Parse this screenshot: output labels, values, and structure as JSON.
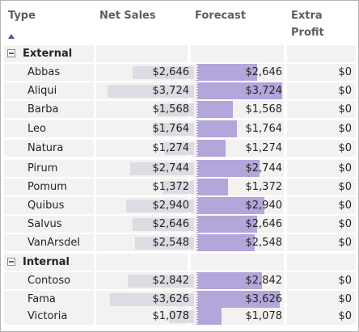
{
  "headers": {
    "type": "Type",
    "net_sales": "Net Sales",
    "forecast": "Forecast",
    "extra_profit_line1": "Extra",
    "extra_profit_line2": "Profit"
  },
  "sort": {
    "column": "Type",
    "direction": "ascending"
  },
  "colors": {
    "sales_bar": "#dcdde3",
    "forecast_bar": "#b3a6db",
    "cell_bg": "#f3f2f1"
  },
  "max_value": 3800,
  "groups": [
    {
      "name": "External",
      "rows": [
        {
          "name": "Abbas",
          "net_sales": "$2,646",
          "forecast": "$2,646",
          "extra_profit": "$0",
          "value": 2646
        },
        {
          "name": "Aliqui",
          "net_sales": "$3,724",
          "forecast": "$3,724",
          "extra_profit": "$0",
          "value": 3724
        },
        {
          "name": "Barba",
          "net_sales": "$1,568",
          "forecast": "$1,568",
          "extra_profit": "$0",
          "value": 1568
        },
        {
          "name": "Leo",
          "net_sales": "$1,764",
          "forecast": "$1,764",
          "extra_profit": "$0",
          "value": 1764
        },
        {
          "name": "Natura",
          "net_sales": "$1,274",
          "forecast": "$1,274",
          "extra_profit": "$0",
          "value": 1274
        },
        {
          "name": "Pirum",
          "net_sales": "$2,744",
          "forecast": "$2,744",
          "extra_profit": "$0",
          "value": 2744
        },
        {
          "name": "Pomum",
          "net_sales": "$1,372",
          "forecast": "$1,372",
          "extra_profit": "$0",
          "value": 1372
        },
        {
          "name": "Quibus",
          "net_sales": "$2,940",
          "forecast": "$2,940",
          "extra_profit": "$0",
          "value": 2940
        },
        {
          "name": "Salvus",
          "net_sales": "$2,646",
          "forecast": "$2,646",
          "extra_profit": "$0",
          "value": 2646
        },
        {
          "name": "VanArsdel",
          "net_sales": "$2,548",
          "forecast": "$2,548",
          "extra_profit": "$0",
          "value": 2548
        }
      ]
    },
    {
      "name": "Internal",
      "rows": [
        {
          "name": "Contoso",
          "net_sales": "$2,842",
          "forecast": "$2,842",
          "extra_profit": "$0",
          "value": 2842
        },
        {
          "name": "Fama",
          "net_sales": "$3,626",
          "forecast": "$3,626",
          "extra_profit": "$0",
          "value": 3626
        },
        {
          "name": "Victoria",
          "net_sales": "$1,078",
          "forecast": "$1,078",
          "extra_profit": "$0",
          "value": 1078
        }
      ]
    }
  ]
}
